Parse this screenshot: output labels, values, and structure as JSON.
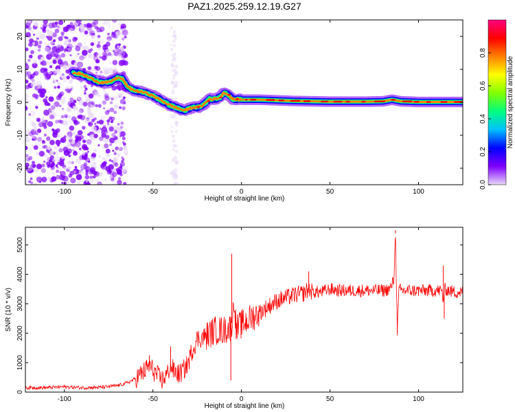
{
  "title": "PAZ1.2025.259.12.19.G27",
  "chart_data": [
    {
      "type": "heatmap",
      "xlabel": "Height of straight line (km)",
      "ylabel": "Frequency (Hz)",
      "xlim": [
        -122,
        125
      ],
      "ylim": [
        -25,
        25
      ],
      "xticks": [
        -100,
        -50,
        0,
        50,
        100
      ],
      "yticks": [
        -20,
        -10,
        0,
        10,
        20
      ],
      "colorbar": {
        "label": "Normalized spectral amplitude",
        "range": [
          0,
          1
        ],
        "ticks": [
          0.0,
          0.2,
          0.4,
          0.6,
          0.8
        ],
        "tick_labels": [
          "0.0",
          "0.2",
          "0.4",
          "0.6",
          "0.8"
        ],
        "colormap": [
          "#e8d8f8",
          "#8000ff",
          "#0000ff",
          "#00c0ff",
          "#00ff80",
          "#80ff00",
          "#ffff00",
          "#ff8000",
          "#ff0000",
          "#ff0080"
        ]
      },
      "ridge": {
        "x": [
          -95,
          -90,
          -88,
          -80,
          -75,
          -70,
          -67,
          -64,
          -60,
          -55,
          -50,
          -45,
          -40,
          -35,
          -32,
          -30,
          -27,
          -25,
          -22,
          -18,
          -15,
          -12,
          -10,
          -8,
          -5,
          0,
          10,
          20,
          30,
          40,
          50,
          60,
          70,
          80,
          85,
          88,
          90,
          95,
          100,
          110,
          120,
          125
        ],
        "freq": [
          9,
          8.5,
          8,
          6,
          6,
          7.5,
          7,
          4.5,
          3.5,
          3,
          2,
          0.5,
          -1,
          -2,
          -2.5,
          -2,
          -1.5,
          -1.5,
          -1,
          1,
          1,
          1.5,
          3,
          2.5,
          1,
          0.8,
          0.8,
          0.6,
          0.4,
          0.3,
          0.2,
          0.2,
          0.2,
          0.3,
          0.8,
          0.5,
          0.3,
          0.2,
          0.1,
          0.1,
          0.1,
          0.1
        ]
      },
      "scatter_region": {
        "x_from": -122,
        "x_to": -65,
        "x_extra": -38
      }
    },
    {
      "type": "line",
      "xlabel": "Height of straight line (km)",
      "ylabel": "SNR (10 * v/v)",
      "xlim": [
        -122,
        125
      ],
      "ylim": [
        0,
        5600
      ],
      "xticks": [
        -100,
        -50,
        0,
        50,
        100
      ],
      "yticks": [
        0,
        1000,
        2000,
        3000,
        4000,
        5000
      ],
      "color": "#ff0000",
      "series": [
        {
          "x": [
            -122,
            -110,
            -100,
            -90,
            -80,
            -70,
            -65,
            -60,
            -55,
            -52,
            -48,
            -45,
            -42,
            -40,
            -38,
            -35,
            -32,
            -30,
            -28,
            -25,
            -20,
            -15,
            -10,
            -6,
            -5,
            -4,
            -3,
            -2,
            0,
            5,
            10,
            15,
            20,
            25,
            30,
            35,
            38,
            40,
            45,
            50,
            55,
            60,
            65,
            70,
            75,
            80,
            84,
            86,
            87,
            88,
            89,
            90,
            95,
            100,
            105,
            110,
            113,
            114,
            115,
            120,
            125
          ],
          "y": [
            150,
            150,
            180,
            150,
            160,
            220,
            300,
            450,
            700,
            900,
            600,
            400,
            600,
            900,
            700,
            600,
            800,
            1000,
            1400,
            1800,
            1900,
            2100,
            2100,
            2200,
            2500,
            3200,
            2100,
            2200,
            2300,
            2500,
            2700,
            2900,
            3100,
            3200,
            3300,
            3350,
            3500,
            3400,
            3400,
            3500,
            3450,
            3450,
            3450,
            3450,
            3450,
            3450,
            3500,
            3800,
            5400,
            2100,
            3500,
            3450,
            3450,
            3450,
            3450,
            3450,
            3450,
            3100,
            3500,
            3400,
            3400
          ]
        }
      ],
      "spikes": [
        {
          "x": -5.5,
          "y": 4700
        },
        {
          "x": -6,
          "y": 400
        },
        {
          "x": 87,
          "y": 5500
        },
        {
          "x": 88,
          "y": 2000
        },
        {
          "x": 114,
          "y": 4300
        },
        {
          "x": 114.5,
          "y": 2500
        },
        {
          "x": -52,
          "y": 1250
        },
        {
          "x": -40,
          "y": 1550
        },
        {
          "x": 38,
          "y": 4100
        }
      ]
    }
  ]
}
